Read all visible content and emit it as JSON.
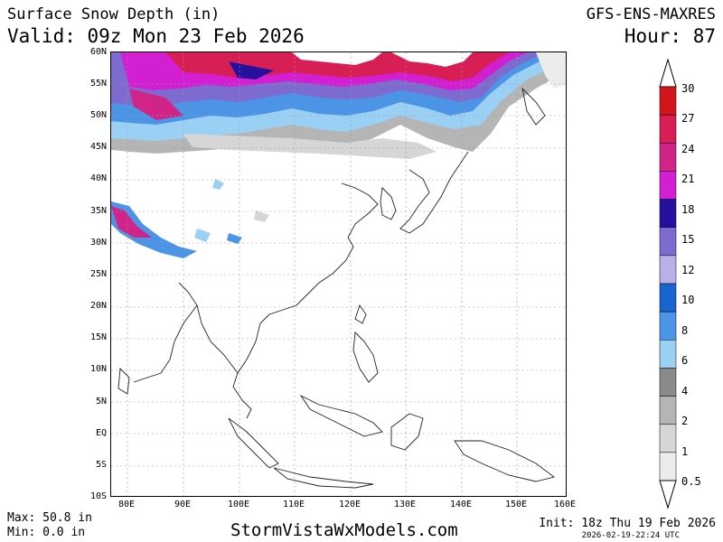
{
  "header": {
    "title": "Surface Snow Depth (in)",
    "valid": "Valid: 09z Mon 23 Feb 2026",
    "model": "GFS-ENS-MAXRES",
    "hour": "Hour: 87"
  },
  "footer": {
    "max": "Max: 50.8 in",
    "min": "Min: 0.0 in",
    "site": "StormVistaWxModels.com",
    "init": "Init: 18z Thu 19 Feb 2026",
    "stamp": "2026-02-19-22:24 UTC"
  },
  "axes": {
    "lat_labels": [
      "60N",
      "55N",
      "50N",
      "45N",
      "40N",
      "35N",
      "30N",
      "25N",
      "20N",
      "15N",
      "10N",
      "5N",
      "EQ",
      "5S",
      "10S"
    ],
    "lon_labels": [
      "80E",
      "90E",
      "100E",
      "110E",
      "120E",
      "130E",
      "140E",
      "150E",
      "160E"
    ]
  },
  "colorbar": {
    "levels": [
      "30",
      "27",
      "24",
      "21",
      "18",
      "15",
      "12",
      "10",
      "8",
      "6",
      "4",
      "2",
      "1",
      "0.5"
    ],
    "colors": [
      "#d2171c",
      "#d81f55",
      "#d12489",
      "#d21fd1",
      "#25119e",
      "#7e6bd0",
      "#b8b0e8",
      "#1a64d2",
      "#4c94e6",
      "#9bd0f5",
      "#8a8a8a",
      "#b5b5b5",
      "#d6d6d6",
      "#ececec"
    ]
  }
}
